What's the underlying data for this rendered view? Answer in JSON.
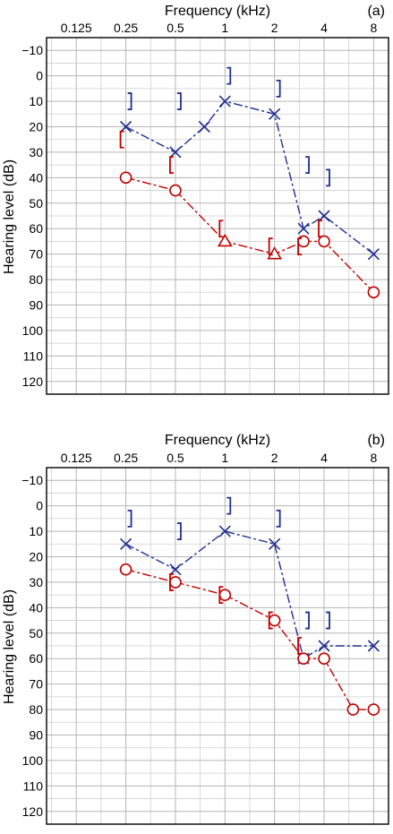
{
  "colors": {
    "right_ear": "#c00000",
    "left_ear": "#1f2f8f",
    "grid": "#cfcfcf"
  },
  "chart_data": [
    {
      "type": "line",
      "panel_label": "(a)",
      "xlabel": "Frequency (kHz)",
      "ylabel": "Hearing level (dB)",
      "x_scale": "log2",
      "x_ticks": [
        "0.125",
        "0.25",
        "0.5",
        "1",
        "2",
        "4",
        "8"
      ],
      "x_tick_values": [
        0.125,
        0.25,
        0.5,
        1,
        2,
        4,
        8
      ],
      "y_ticks": [
        -10,
        0,
        10,
        20,
        30,
        40,
        50,
        60,
        70,
        80,
        90,
        100,
        110,
        120
      ],
      "ylim": [
        -15,
        125
      ],
      "y_inverted": true,
      "grid": true,
      "series": [
        {
          "key": "left_ac",
          "marker": "x",
          "color_key": "left_ear",
          "dashed": true,
          "x": [
            0.25,
            0.5,
            0.75,
            1,
            2,
            3,
            4,
            8
          ],
          "y": [
            20,
            30,
            20,
            10,
            15,
            60,
            55,
            70
          ]
        },
        {
          "key": "right_ac",
          "marker": "mixed",
          "color_key": "right_ear",
          "dashed": true,
          "x": [
            0.25,
            0.5,
            1,
            2,
            3,
            4,
            8
          ],
          "y": [
            40,
            45,
            65,
            70,
            65,
            65,
            85
          ],
          "markers": [
            "o",
            "o",
            "triangle",
            "triangle",
            "o",
            "o",
            "o"
          ]
        },
        {
          "key": "left_bc",
          "marker": "bracket-right",
          "color_key": "left_ear",
          "x": [
            0.25,
            0.5,
            1,
            2,
            3,
            4
          ],
          "y": [
            10,
            10,
            0,
            5,
            35,
            40
          ]
        },
        {
          "key": "right_bc",
          "marker": "bracket-left",
          "color_key": "right_ear",
          "x": [
            0.25,
            0.5,
            1,
            2,
            3,
            4
          ],
          "y": [
            25,
            35,
            60,
            67,
            67,
            60
          ]
        }
      ]
    },
    {
      "type": "line",
      "panel_label": "(b)",
      "xlabel": "Frequency (kHz)",
      "ylabel": "Hearing level (dB)",
      "x_scale": "log2",
      "x_ticks": [
        "0.125",
        "0.25",
        "0.5",
        "1",
        "2",
        "4",
        "8"
      ],
      "x_tick_values": [
        0.125,
        0.25,
        0.5,
        1,
        2,
        4,
        8
      ],
      "y_ticks": [
        -10,
        0,
        10,
        20,
        30,
        40,
        50,
        60,
        70,
        80,
        90,
        100,
        110,
        120
      ],
      "ylim": [
        -15,
        125
      ],
      "y_inverted": true,
      "grid": true,
      "series": [
        {
          "key": "left_ac",
          "marker": "x",
          "color_key": "left_ear",
          "dashed": true,
          "x": [
            0.25,
            0.5,
            1,
            2,
            3,
            4,
            8
          ],
          "y": [
            15,
            25,
            10,
            15,
            60,
            55,
            55
          ]
        },
        {
          "key": "right_ac",
          "marker": "o",
          "color_key": "right_ear",
          "dashed": true,
          "x": [
            0.25,
            0.5,
            1,
            2,
            3,
            4,
            6,
            8
          ],
          "y": [
            25,
            30,
            35,
            45,
            60,
            60,
            80,
            80
          ]
        },
        {
          "key": "left_bc",
          "marker": "bracket-right",
          "color_key": "left_ear",
          "x": [
            0.25,
            0.5,
            1,
            2,
            3,
            4
          ],
          "y": [
            5,
            10,
            0,
            5,
            45,
            45
          ]
        },
        {
          "key": "right_bc",
          "marker": "bracket-left",
          "color_key": "right_ear",
          "x": [
            0.5,
            1,
            2,
            3
          ],
          "y": [
            30,
            35,
            45,
            55
          ]
        }
      ]
    }
  ]
}
